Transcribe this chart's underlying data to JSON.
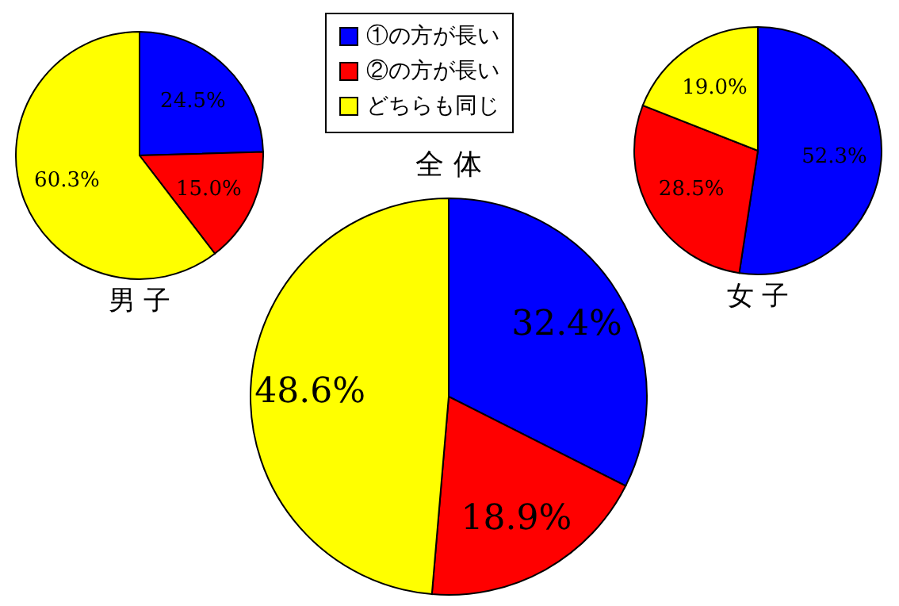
{
  "chart_data": [
    {
      "type": "pie",
      "title": "男 子",
      "categories": [
        null,
        null,
        null
      ],
      "values": [
        24.5,
        15.0,
        60.3
      ],
      "value_labels": [
        "24.5%",
        "15.0%",
        "60.3%"
      ],
      "colors": [
        "#0000ff",
        "#ff0000",
        "#ffff00"
      ]
    },
    {
      "type": "pie",
      "title": "女 子",
      "categories": [
        null,
        null,
        null
      ],
      "values": [
        52.3,
        28.5,
        19.0
      ],
      "value_labels": [
        "52.3%",
        "28.5%",
        "19.0%"
      ],
      "colors": [
        "#0000ff",
        "#ff0000",
        "#ffff00"
      ]
    },
    {
      "type": "pie",
      "title": "全 体",
      "categories": [
        "①の方が長い",
        "②の方が長い",
        "どちらも同じ"
      ],
      "values": [
        32.4,
        18.9,
        48.6
      ],
      "value_labels": [
        "32.4%",
        "18.9%",
        "48.6%"
      ],
      "colors": [
        "#0000ff",
        "#ff0000",
        "#ffff00"
      ],
      "legend": "top"
    }
  ]
}
